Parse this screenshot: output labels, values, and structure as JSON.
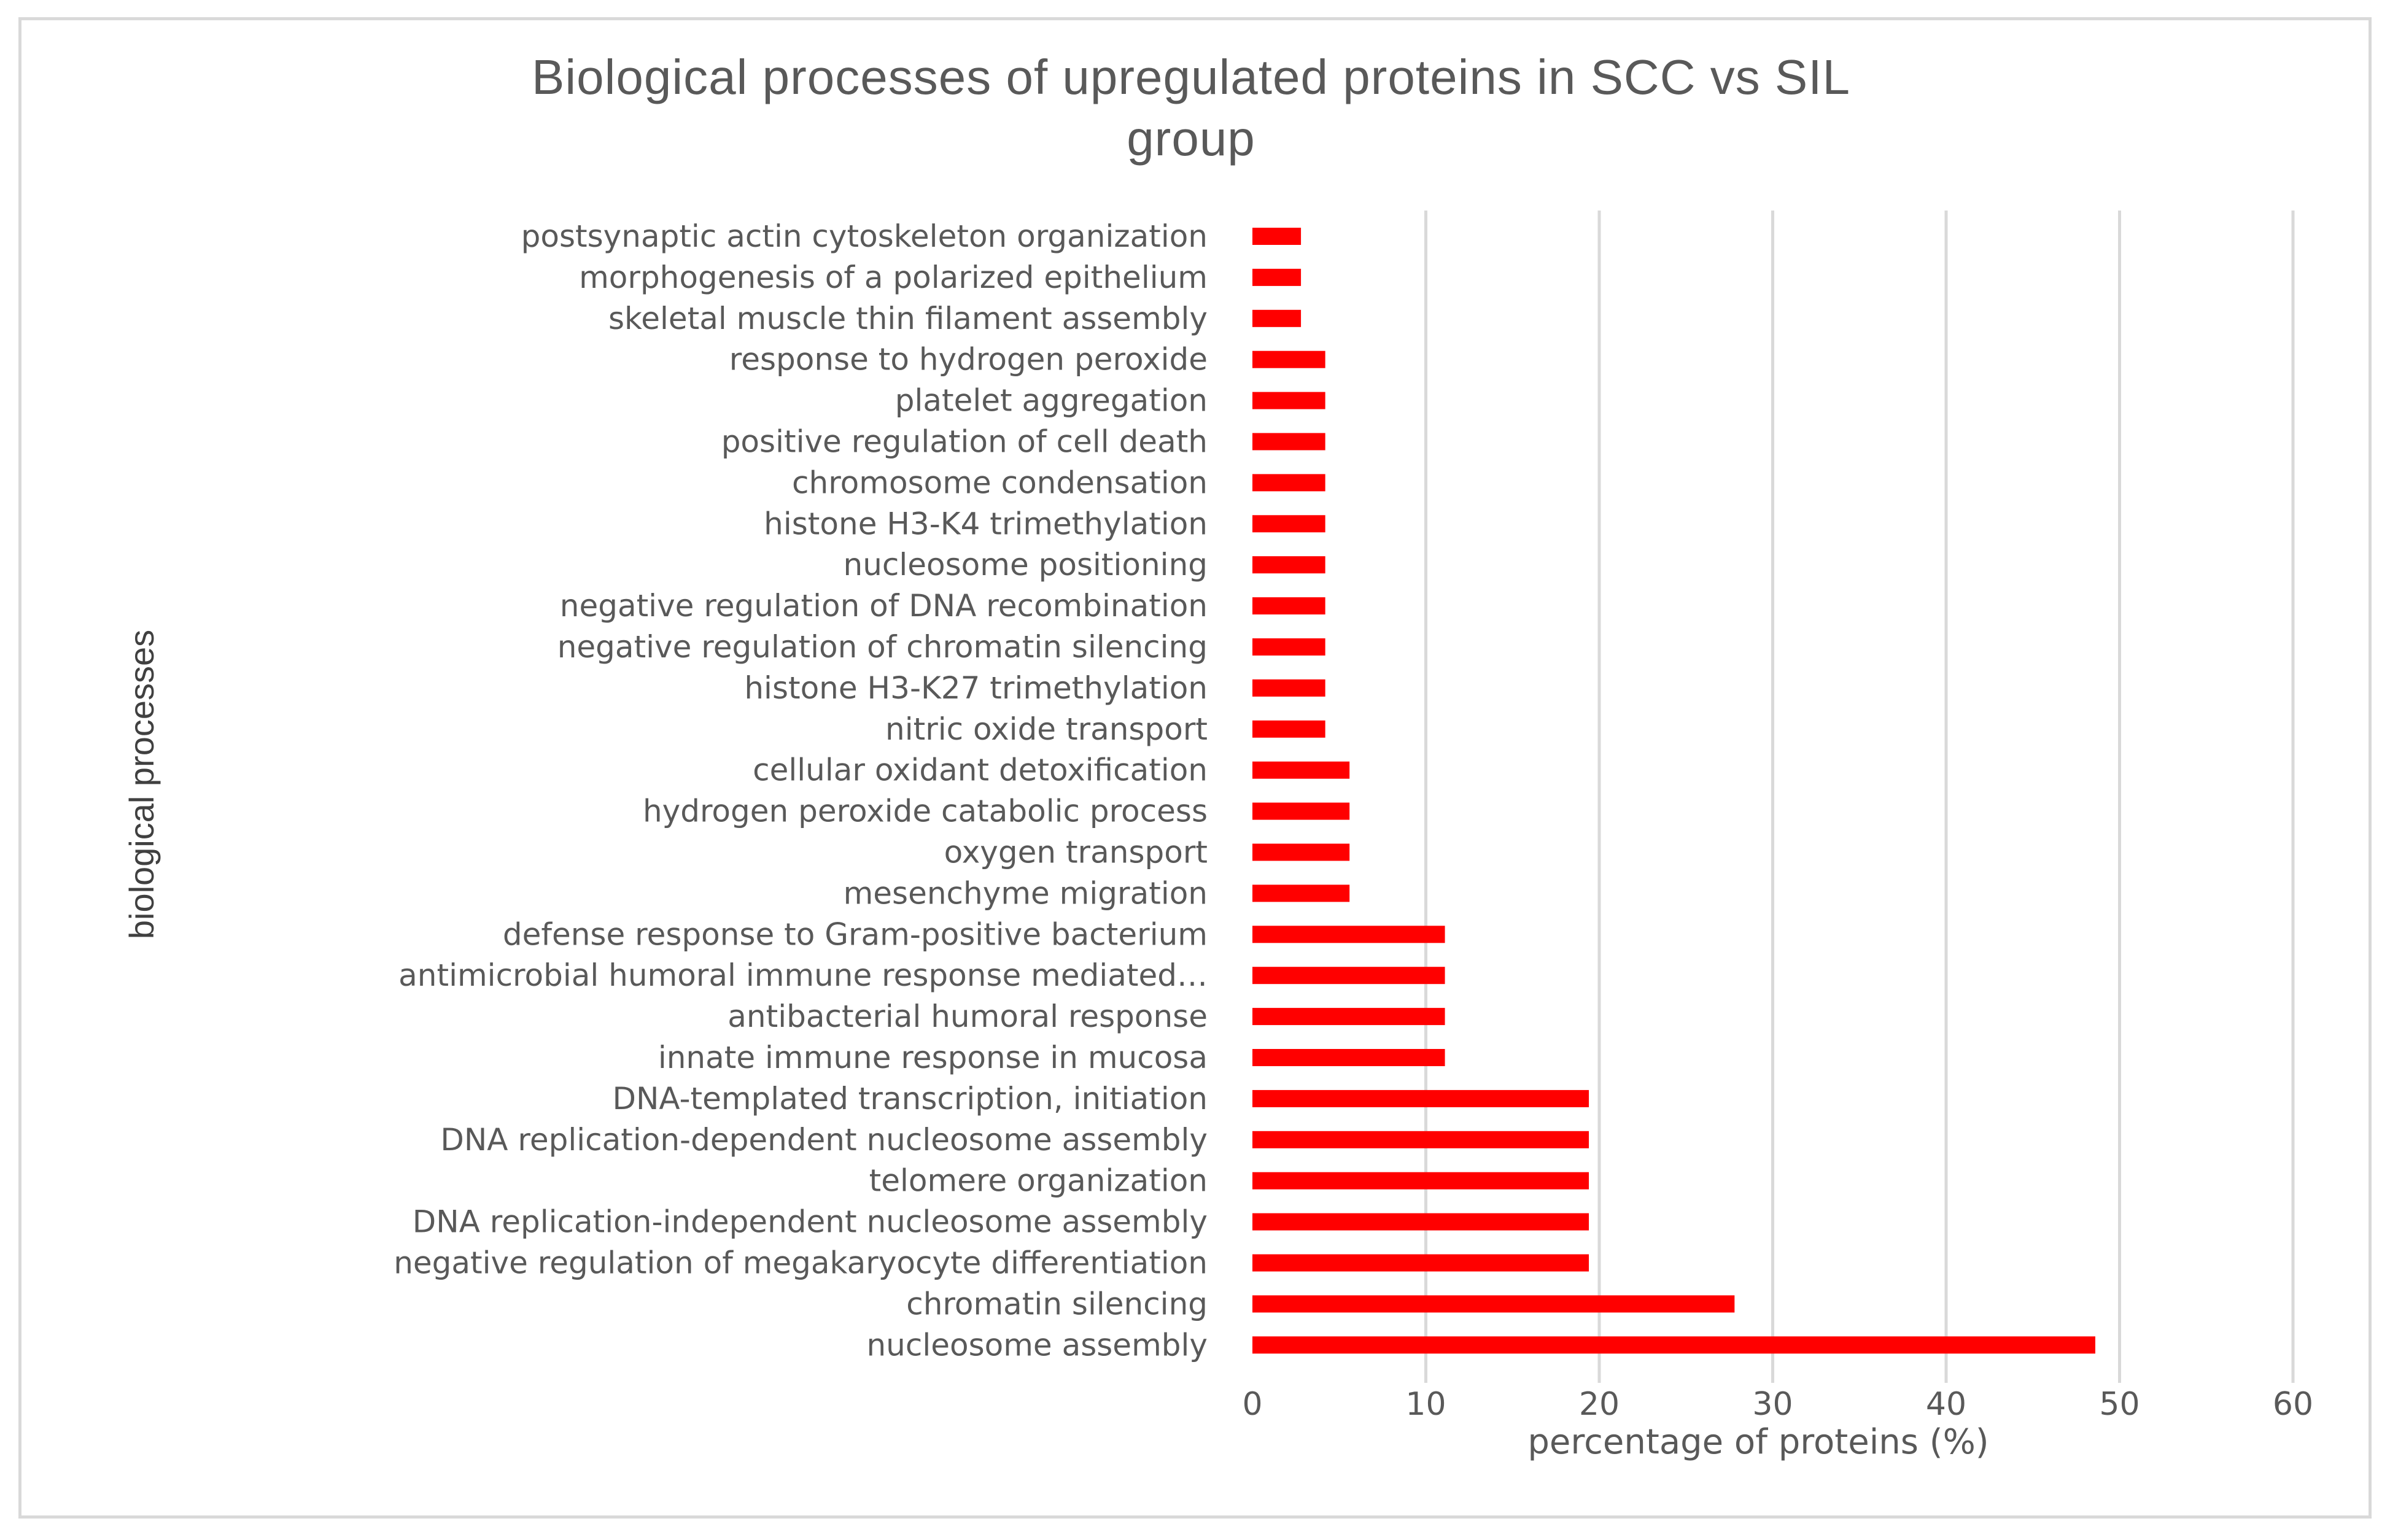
{
  "chart_data": {
    "type": "bar",
    "orientation": "horizontal",
    "title": "Biological processes of upregulated proteins in SCC vs SIL group",
    "title_lines": [
      "Biological processes of upregulated proteins in SCC vs SIL",
      "group"
    ],
    "xlabel": "percentage of proteins (%)",
    "ylabel": "biological processes",
    "xlim": [
      0,
      60
    ],
    "xticks": [
      0,
      10,
      20,
      30,
      40,
      50,
      60
    ],
    "grid": "vertical",
    "legend": "none",
    "bar_color": "#ff0000",
    "categories": [
      "postsynaptic actin cytoskeleton organization",
      "morphogenesis of a polarized epithelium",
      "skeletal muscle thin filament assembly",
      "response to hydrogen peroxide",
      "platelet aggregation",
      "positive regulation of cell death",
      "chromosome condensation",
      "histone H3-K4 trimethylation",
      "nucleosome positioning",
      "negative regulation of DNA recombination",
      "negative regulation of chromatin silencing",
      "histone H3-K27 trimethylation",
      "nitric oxide transport",
      "cellular oxidant detoxification",
      "hydrogen peroxide catabolic process",
      "oxygen transport",
      "mesenchyme migration",
      "defense response to Gram-positive bacterium",
      "antimicrobial humoral immune response mediated…",
      "antibacterial humoral response",
      "innate immune response in mucosa",
      "DNA-templated transcription, initiation",
      "DNA replication-dependent nucleosome assembly",
      "telomere organization",
      "DNA replication-independent nucleosome assembly",
      "negative regulation of megakaryocyte differentiation",
      "chromatin silencing",
      "nucleosome assembly"
    ],
    "values": [
      2.8,
      2.8,
      2.8,
      4.2,
      4.2,
      4.2,
      4.2,
      4.2,
      4.2,
      4.2,
      4.2,
      4.2,
      4.2,
      5.6,
      5.6,
      5.6,
      5.6,
      11.1,
      11.1,
      11.1,
      11.1,
      19.4,
      19.4,
      19.4,
      19.4,
      19.4,
      27.8,
      48.6
    ]
  }
}
